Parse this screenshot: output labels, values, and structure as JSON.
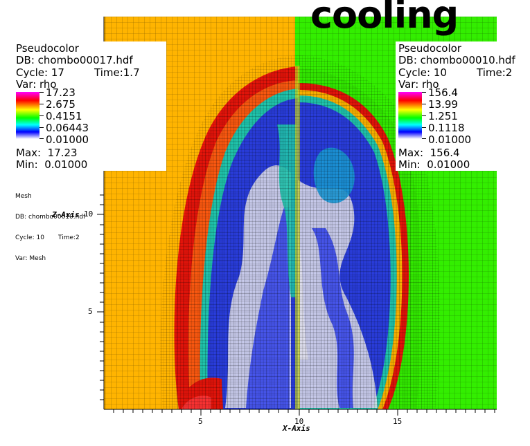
{
  "title": "cooling",
  "left_legend": {
    "plot_type": "Pseudocolor",
    "db": "DB: chombo00017.hdf",
    "cycle": "Cycle: 17",
    "time": "Time:1.7",
    "var": "Var: rho",
    "ticks": [
      "17.23",
      "2.675",
      "0.4151",
      "0.06443",
      "0.01000"
    ],
    "max": "Max:  17.23",
    "min": "Min:  0.01000"
  },
  "right_legend": {
    "plot_type": "Pseudocolor",
    "db": "DB: chombo00010.hdf",
    "cycle": "Cycle: 10",
    "time": "Time:2",
    "var": "Var: rho",
    "ticks": [
      "156.4",
      "13.99",
      "1.251",
      "0.1118",
      "0.01000"
    ],
    "max": "Max:  156.4",
    "min": "Min:  0.01000"
  },
  "mesh_legend": {
    "plot_type": "Mesh",
    "db": "DB: chombo00010.hdf",
    "cycle_time": "Cycle: 10       Time:2",
    "var": "Var: Mesh"
  },
  "axes": {
    "x_title": "X-Axis",
    "z_title": "Z-Axis",
    "x_ticks": [
      "5",
      "10",
      "15"
    ],
    "z_ticks": [
      "5",
      "10"
    ]
  },
  "colors": {
    "left_background": "#ffb400",
    "right_background": "#33ee00",
    "shock_red": "#e8140a",
    "cavity_blue": "#2233dd",
    "cavity_white": "#e6e6f0",
    "mesh": "#000000"
  }
}
